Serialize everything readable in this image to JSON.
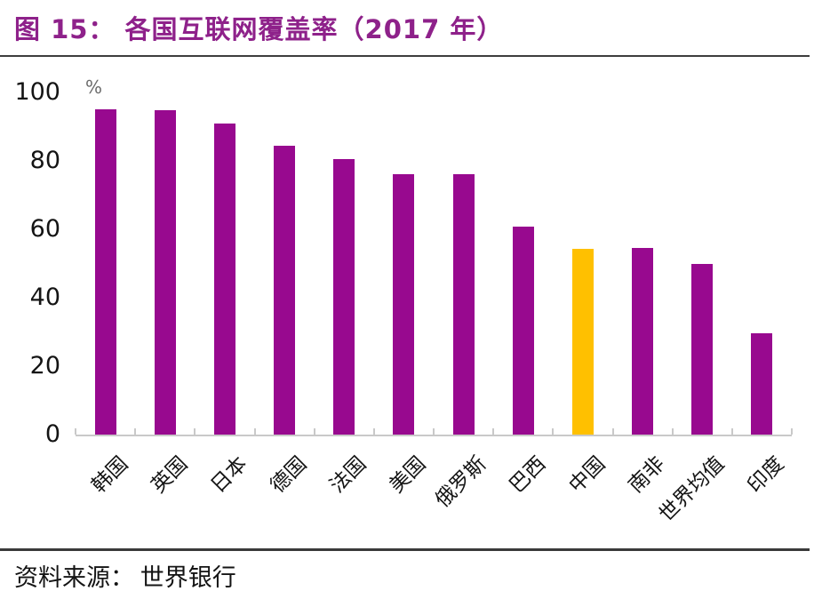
{
  "figure": {
    "title": "图 15：  各国互联网覆盖率（2017 年）",
    "source_label": "资料来源：  世界银行"
  },
  "chart_data": {
    "type": "bar",
    "title": "各国互联网覆盖率（2017 年）",
    "unit": "%",
    "categories": [
      "韩国",
      "英国",
      "日本",
      "德国",
      "法国",
      "美国",
      "俄罗斯",
      "巴西",
      "中国",
      "南非",
      "世界均值",
      "印度"
    ],
    "values": [
      95.1,
      94.8,
      91.0,
      84.4,
      80.5,
      76.2,
      76.0,
      60.9,
      54.3,
      54.5,
      50.0,
      29.5
    ],
    "highlight_category": "中国",
    "bar_color": "#98098F",
    "highlight_color": "#FFC000",
    "ylim": [
      0,
      100
    ],
    "yticks": [
      0,
      20,
      40,
      60,
      80,
      100
    ],
    "grid": false,
    "legend": null,
    "xlabel": "",
    "ylabel": "%"
  },
  "colors": {
    "title_text": "#8E218A",
    "axis_text": "#141414",
    "unit_text": "#6b6b6b",
    "baseline": "#c9c9c9",
    "rule": "#3a3a3a"
  }
}
